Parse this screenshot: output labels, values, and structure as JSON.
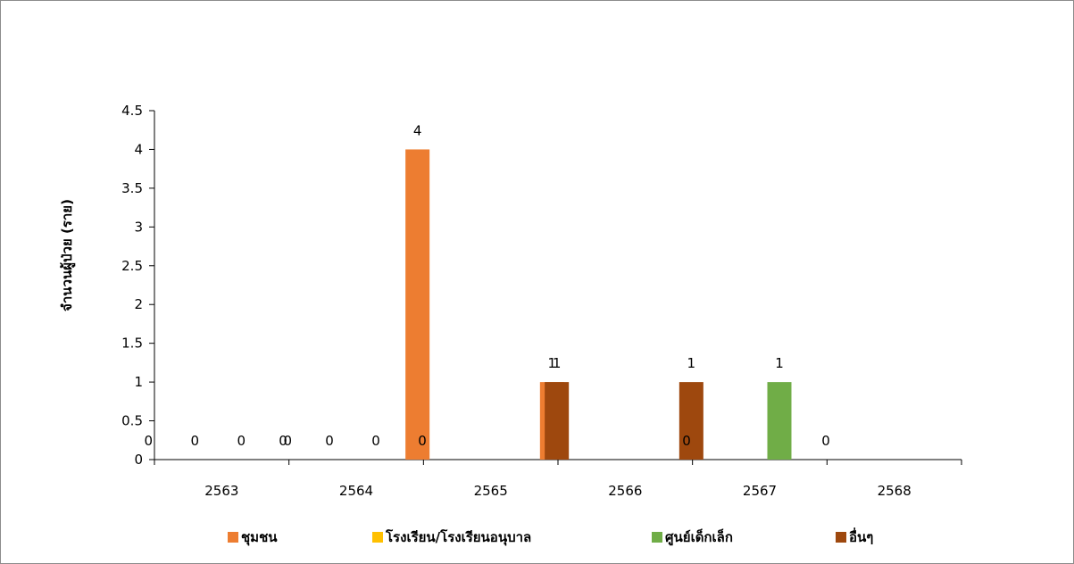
{
  "chart_data": {
    "type": "bar",
    "title": "",
    "xlabel": "",
    "ylabel": "จำนวนผู้ป่วย (ราย)",
    "ylim": [
      0,
      4.5
    ],
    "yticks": [
      "0",
      "0.5",
      "1",
      "1.5",
      "2",
      "2.5",
      "3",
      "3.5",
      "4",
      "4.5"
    ],
    "grid": false,
    "legend_position": "bottom",
    "categories": [
      "2563",
      "2564",
      "2565",
      "2566",
      "2567",
      "2568"
    ],
    "series": [
      {
        "name": "ชุมชน",
        "color": "#ED7D31",
        "values": [
          0,
          0,
          4,
          1,
          0,
          null
        ],
        "labels": [
          "0",
          "0",
          "4",
          "1",
          "0",
          ""
        ]
      },
      {
        "name": "โรงเรียน/โรงเรียนอนุบาล",
        "color": "#FFC000",
        "values": [
          0,
          0,
          null,
          null,
          null,
          null
        ],
        "labels": [
          "0",
          "0",
          "",
          "",
          "",
          ""
        ]
      },
      {
        "name": "ศูนย์เด็กเล็ก",
        "color": "#70AD47",
        "values": [
          0,
          0,
          null,
          null,
          1,
          null
        ],
        "labels": [
          "0",
          "0",
          "",
          "",
          "1",
          ""
        ]
      },
      {
        "name": "อื่นๆ",
        "color": "#9E480E",
        "values": [
          0,
          0,
          1,
          1,
          0,
          null
        ],
        "labels": [
          "0",
          "0",
          "1",
          "1",
          "0",
          ""
        ]
      }
    ]
  }
}
